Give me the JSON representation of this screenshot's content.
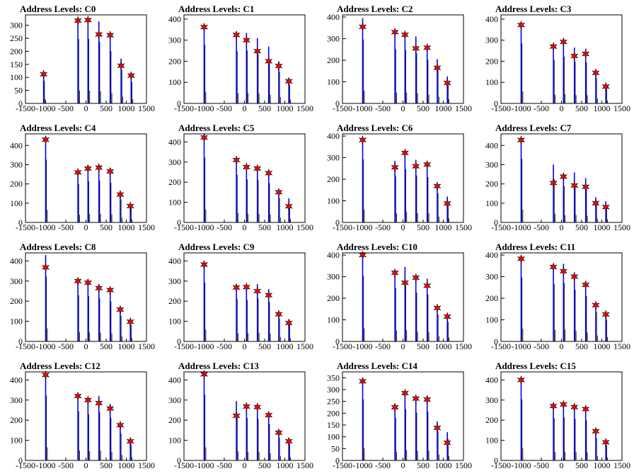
{
  "chart_data": [
    {
      "type": "bar",
      "title": "Address Levels: C0",
      "ylim": [
        0,
        340
      ],
      "yticks": [
        0,
        50,
        100,
        150,
        200,
        250,
        300
      ],
      "xlim": [
        -1500,
        1500
      ],
      "xticks": [
        -1500,
        -1000,
        -500,
        0,
        500,
        1000,
        1500
      ],
      "peaks": [
        {
          "x": -1050,
          "h": 115,
          "star": 112
        },
        {
          "x": -200,
          "h": 330,
          "star": 318
        },
        {
          "x": 50,
          "h": 330,
          "star": 320
        },
        {
          "x": 320,
          "h": 315,
          "star": 265
        },
        {
          "x": 600,
          "h": 268,
          "star": 262
        },
        {
          "x": 870,
          "h": 172,
          "star": 145
        },
        {
          "x": 1120,
          "h": 110,
          "star": 107
        }
      ]
    },
    {
      "type": "bar",
      "title": "Address Levels: C1",
      "ylim": [
        0,
        420
      ],
      "yticks": [
        0,
        100,
        200,
        300,
        400
      ],
      "xlim": [
        -1500,
        1500
      ],
      "xticks": [
        -1500,
        -1000,
        -500,
        0,
        500,
        1000,
        1500
      ],
      "peaks": [
        {
          "x": -1000,
          "h": 370,
          "star": 362
        },
        {
          "x": -200,
          "h": 330,
          "star": 325
        },
        {
          "x": 50,
          "h": 335,
          "star": 300
        },
        {
          "x": 320,
          "h": 310,
          "star": 248
        },
        {
          "x": 600,
          "h": 270,
          "star": 200
        },
        {
          "x": 850,
          "h": 200,
          "star": 178
        },
        {
          "x": 1100,
          "h": 118,
          "star": 105
        }
      ]
    },
    {
      "type": "bar",
      "title": "Address Levels: C2",
      "ylim": [
        0,
        410
      ],
      "yticks": [
        0,
        100,
        200,
        300,
        400
      ],
      "xlim": [
        -1500,
        1500
      ],
      "xticks": [
        -1500,
        -1000,
        -500,
        0,
        500,
        1000,
        1500
      ],
      "peaks": [
        {
          "x": -1000,
          "h": 395,
          "star": 355
        },
        {
          "x": -200,
          "h": 335,
          "star": 330
        },
        {
          "x": 50,
          "h": 330,
          "star": 318
        },
        {
          "x": 320,
          "h": 310,
          "star": 255
        },
        {
          "x": 600,
          "h": 270,
          "star": 258
        },
        {
          "x": 850,
          "h": 205,
          "star": 165
        },
        {
          "x": 1100,
          "h": 125,
          "star": 95
        }
      ]
    },
    {
      "type": "bar",
      "title": "Address Levels: C3",
      "ylim": [
        0,
        420
      ],
      "yticks": [
        0,
        100,
        200,
        300,
        400
      ],
      "xlim": [
        -1500,
        1500
      ],
      "xticks": [
        -1500,
        -1000,
        -500,
        0,
        500,
        1000,
        1500
      ],
      "peaks": [
        {
          "x": -1000,
          "h": 380,
          "star": 372
        },
        {
          "x": -200,
          "h": 275,
          "star": 270
        },
        {
          "x": 50,
          "h": 295,
          "star": 292
        },
        {
          "x": 320,
          "h": 265,
          "star": 225
        },
        {
          "x": 600,
          "h": 260,
          "star": 235
        },
        {
          "x": 850,
          "h": 160,
          "star": 145
        },
        {
          "x": 1100,
          "h": 90,
          "star": 80
        }
      ]
    },
    {
      "type": "bar",
      "title": "Address Levels: C4",
      "ylim": [
        0,
        460
      ],
      "yticks": [
        0,
        100,
        200,
        300,
        400
      ],
      "xlim": [
        -1500,
        1500
      ],
      "xticks": [
        -1500,
        -1000,
        -500,
        0,
        500,
        1000,
        1500
      ],
      "peaks": [
        {
          "x": -1000,
          "h": 435,
          "star": 430
        },
        {
          "x": -200,
          "h": 265,
          "star": 260
        },
        {
          "x": 50,
          "h": 285,
          "star": 280
        },
        {
          "x": 320,
          "h": 290,
          "star": 285
        },
        {
          "x": 600,
          "h": 275,
          "star": 265
        },
        {
          "x": 850,
          "h": 160,
          "star": 145
        },
        {
          "x": 1100,
          "h": 100,
          "star": 85
        }
      ]
    },
    {
      "type": "bar",
      "title": "Address Levels: C5",
      "ylim": [
        0,
        440
      ],
      "yticks": [
        0,
        100,
        200,
        300,
        400
      ],
      "xlim": [
        -1500,
        1500
      ],
      "xticks": [
        -1500,
        -1000,
        -500,
        0,
        500,
        1000,
        1500
      ],
      "peaks": [
        {
          "x": -1000,
          "h": 430,
          "star": 422
        },
        {
          "x": -200,
          "h": 315,
          "star": 310
        },
        {
          "x": 50,
          "h": 285,
          "star": 275
        },
        {
          "x": 320,
          "h": 280,
          "star": 268
        },
        {
          "x": 600,
          "h": 260,
          "star": 245
        },
        {
          "x": 850,
          "h": 160,
          "star": 150
        },
        {
          "x": 1100,
          "h": 120,
          "star": 80
        }
      ]
    },
    {
      "type": "bar",
      "title": "Address Levels: C6",
      "ylim": [
        0,
        410
      ],
      "yticks": [
        0,
        100,
        200,
        300,
        400
      ],
      "xlim": [
        -1500,
        1500
      ],
      "xticks": [
        -1500,
        -1000,
        -500,
        0,
        500,
        1000,
        1500
      ],
      "peaks": [
        {
          "x": -1000,
          "h": 390,
          "star": 382
        },
        {
          "x": -200,
          "h": 285,
          "star": 255
        },
        {
          "x": 50,
          "h": 330,
          "star": 322
        },
        {
          "x": 320,
          "h": 290,
          "star": 260
        },
        {
          "x": 600,
          "h": 280,
          "star": 268
        },
        {
          "x": 850,
          "h": 180,
          "star": 168
        },
        {
          "x": 1100,
          "h": 120,
          "star": 88
        }
      ]
    },
    {
      "type": "bar",
      "title": "Address Levels: C7",
      "ylim": [
        0,
        460
      ],
      "yticks": [
        0,
        100,
        200,
        300,
        400
      ],
      "xlim": [
        -1500,
        1500
      ],
      "xticks": [
        -1500,
        -1000,
        -500,
        0,
        500,
        1000,
        1500
      ],
      "peaks": [
        {
          "x": -1000,
          "h": 440,
          "star": 428
        },
        {
          "x": -200,
          "h": 300,
          "star": 205
        },
        {
          "x": 50,
          "h": 250,
          "star": 238
        },
        {
          "x": 320,
          "h": 260,
          "star": 192
        },
        {
          "x": 600,
          "h": 230,
          "star": 185
        },
        {
          "x": 850,
          "h": 130,
          "star": 100
        },
        {
          "x": 1100,
          "h": 110,
          "star": 80
        }
      ]
    },
    {
      "type": "bar",
      "title": "Address Levels: C8",
      "ylim": [
        0,
        440
      ],
      "yticks": [
        0,
        100,
        200,
        300,
        400
      ],
      "xlim": [
        -1500,
        1500
      ],
      "xticks": [
        -1500,
        -1000,
        -500,
        0,
        500,
        1000,
        1500
      ],
      "peaks": [
        {
          "x": -1000,
          "h": 430,
          "star": 368
        },
        {
          "x": -200,
          "h": 305,
          "star": 300
        },
        {
          "x": 50,
          "h": 300,
          "star": 292
        },
        {
          "x": 320,
          "h": 285,
          "star": 265
        },
        {
          "x": 600,
          "h": 265,
          "star": 255
        },
        {
          "x": 850,
          "h": 170,
          "star": 158
        },
        {
          "x": 1100,
          "h": 110,
          "star": 98
        }
      ]
    },
    {
      "type": "bar",
      "title": "Address Levels: C9",
      "ylim": [
        0,
        440
      ],
      "yticks": [
        0,
        100,
        200,
        300,
        400
      ],
      "xlim": [
        -1500,
        1500
      ],
      "xticks": [
        -1500,
        -1000,
        -500,
        0,
        500,
        1000,
        1500
      ],
      "peaks": [
        {
          "x": -1000,
          "h": 390,
          "star": 382
        },
        {
          "x": -200,
          "h": 280,
          "star": 268
        },
        {
          "x": 50,
          "h": 275,
          "star": 270
        },
        {
          "x": 320,
          "h": 285,
          "star": 250
        },
        {
          "x": 600,
          "h": 260,
          "star": 230
        },
        {
          "x": 850,
          "h": 150,
          "star": 135
        },
        {
          "x": 1100,
          "h": 110,
          "star": 92
        }
      ]
    },
    {
      "type": "bar",
      "title": "Address Levels: C10",
      "ylim": [
        0,
        410
      ],
      "yticks": [
        0,
        100,
        200,
        300,
        400
      ],
      "xlim": [
        -1500,
        1500
      ],
      "xticks": [
        -1500,
        -1000,
        -500,
        0,
        500,
        1000,
        1500
      ],
      "peaks": [
        {
          "x": -1000,
          "h": 405,
          "star": 400
        },
        {
          "x": -200,
          "h": 330,
          "star": 318
        },
        {
          "x": 50,
          "h": 345,
          "star": 272
        },
        {
          "x": 320,
          "h": 300,
          "star": 295
        },
        {
          "x": 600,
          "h": 290,
          "star": 258
        },
        {
          "x": 850,
          "h": 165,
          "star": 155
        },
        {
          "x": 1100,
          "h": 120,
          "star": 115
        }
      ]
    },
    {
      "type": "bar",
      "title": "Address Levels: C11",
      "ylim": [
        0,
        410
      ],
      "yticks": [
        0,
        100,
        200,
        300,
        400
      ],
      "xlim": [
        -1500,
        1500
      ],
      "xticks": [
        -1500,
        -1000,
        -500,
        0,
        500,
        1000,
        1500
      ],
      "peaks": [
        {
          "x": -1000,
          "h": 395,
          "star": 383
        },
        {
          "x": -200,
          "h": 355,
          "star": 345
        },
        {
          "x": 50,
          "h": 360,
          "star": 325
        },
        {
          "x": 320,
          "h": 320,
          "star": 300
        },
        {
          "x": 600,
          "h": 280,
          "star": 262
        },
        {
          "x": 850,
          "h": 180,
          "star": 168
        },
        {
          "x": 1100,
          "h": 135,
          "star": 125
        }
      ]
    },
    {
      "type": "bar",
      "title": "Address Levels: C12",
      "ylim": [
        0,
        440
      ],
      "yticks": [
        0,
        100,
        200,
        300,
        400
      ],
      "xlim": [
        -1500,
        1500
      ],
      "xticks": [
        -1500,
        -1000,
        -500,
        0,
        500,
        1000,
        1500
      ],
      "peaks": [
        {
          "x": -1000,
          "h": 430,
          "star": 425
        },
        {
          "x": -200,
          "h": 325,
          "star": 320
        },
        {
          "x": 50,
          "h": 305,
          "star": 300
        },
        {
          "x": 320,
          "h": 320,
          "star": 285
        },
        {
          "x": 600,
          "h": 280,
          "star": 258
        },
        {
          "x": 850,
          "h": 180,
          "star": 175
        },
        {
          "x": 1100,
          "h": 105,
          "star": 95
        }
      ]
    },
    {
      "type": "bar",
      "title": "Address Levels: C13",
      "ylim": [
        0,
        440
      ],
      "yticks": [
        0,
        100,
        200,
        300,
        400
      ],
      "xlim": [
        -1500,
        1500
      ],
      "xticks": [
        -1500,
        -1000,
        -500,
        0,
        500,
        1000,
        1500
      ],
      "peaks": [
        {
          "x": -1000,
          "h": 435,
          "star": 428
        },
        {
          "x": -200,
          "h": 295,
          "star": 222
        },
        {
          "x": 50,
          "h": 280,
          "star": 268
        },
        {
          "x": 320,
          "h": 275,
          "star": 265
        },
        {
          "x": 600,
          "h": 240,
          "star": 225
        },
        {
          "x": 850,
          "h": 150,
          "star": 138
        },
        {
          "x": 1100,
          "h": 110,
          "star": 95
        }
      ]
    },
    {
      "type": "bar",
      "title": "Address Levels: C14",
      "ylim": [
        0,
        375
      ],
      "yticks": [
        0,
        50,
        100,
        150,
        200,
        250,
        300,
        350
      ],
      "xlim": [
        -1500,
        1500
      ],
      "xticks": [
        -1500,
        -1000,
        -500,
        0,
        500,
        1000,
        1500
      ],
      "peaks": [
        {
          "x": -1000,
          "h": 345,
          "star": 335
        },
        {
          "x": -200,
          "h": 240,
          "star": 225
        },
        {
          "x": 50,
          "h": 290,
          "star": 285
        },
        {
          "x": 320,
          "h": 270,
          "star": 262
        },
        {
          "x": 600,
          "h": 275,
          "star": 258
        },
        {
          "x": 850,
          "h": 165,
          "star": 138
        },
        {
          "x": 1100,
          "h": 120,
          "star": 75
        }
      ]
    },
    {
      "type": "bar",
      "title": "Address Levels: C15",
      "ylim": [
        0,
        440
      ],
      "yticks": [
        0,
        100,
        200,
        300,
        400
      ],
      "xlim": [
        -1500,
        1500
      ],
      "xticks": [
        -1500,
        -1000,
        -500,
        0,
        500,
        1000,
        1500
      ],
      "peaks": [
        {
          "x": -1000,
          "h": 405,
          "star": 400
        },
        {
          "x": -200,
          "h": 280,
          "star": 270
        },
        {
          "x": 50,
          "h": 285,
          "star": 278
        },
        {
          "x": 320,
          "h": 275,
          "star": 265
        },
        {
          "x": 600,
          "h": 265,
          "star": 255
        },
        {
          "x": 850,
          "h": 150,
          "star": 145
        },
        {
          "x": 1100,
          "h": 100,
          "star": 90
        }
      ]
    }
  ],
  "colors": {
    "bar": "#0000ff",
    "bar_outline": "#000000",
    "marker": "#ff0000",
    "axis": "#000000"
  },
  "marker_icon": "star-marker-icon"
}
